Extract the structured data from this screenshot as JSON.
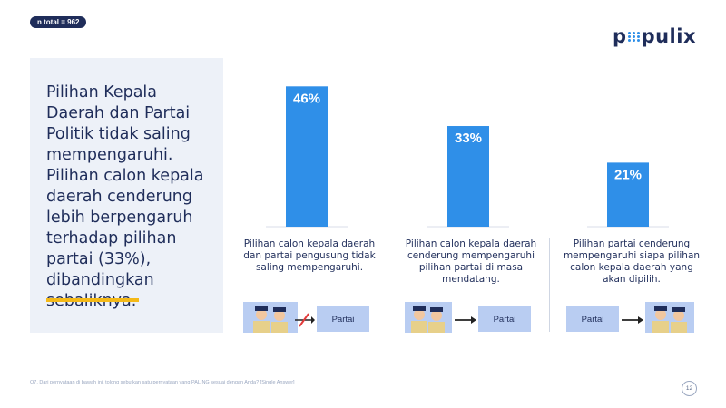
{
  "header": {
    "n_total": "n total = 962",
    "logo_left": "p",
    "logo_right": "pulix"
  },
  "panel": {
    "text": "Pilihan Kepala Daerah dan Partai Politik tidak saling mempengaruhi. Pilihan calon kepala daerah cenderung lebih berpengaruh terhadap pilihan partai (33%), dibandingkan sebaliknya."
  },
  "chart_data": {
    "type": "bar",
    "categories": [
      "Pilihan calon kepala daerah dan partai pengusung tidak saling mempengaruhi.",
      "Pilihan calon kepala daerah cenderung mempengaruhi pilihan partai di masa mendatang.",
      "Pilihan partai cenderung mempengaruhi siapa pilihan calon kepala daerah yang akan dipilih."
    ],
    "values": [
      46,
      33,
      21
    ],
    "data_labels": [
      "46%",
      "33%",
      "21%"
    ],
    "ylim": [
      0,
      50
    ],
    "bar_color": "#2f8fe8",
    "grid": false
  },
  "diagrams": {
    "partai_label": "Partai"
  },
  "footer": {
    "note": "Q7. Dari pernyataan di bawah ini, tolong sebutkan satu pernyataan yang PALING sesuai dengan Anda? [Single Answer]",
    "page": "12"
  }
}
